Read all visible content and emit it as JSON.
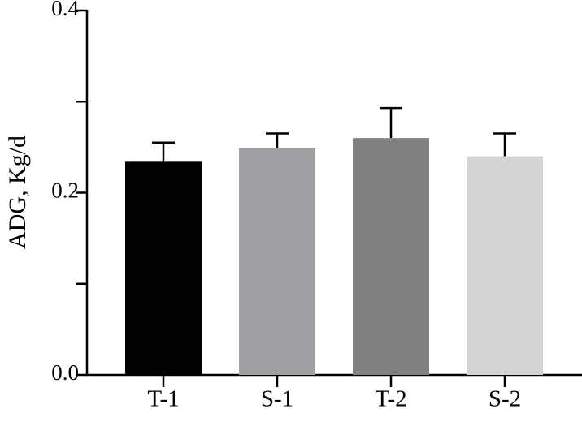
{
  "chart_data": {
    "type": "bar",
    "y_label": "ADG, Kg/d",
    "categories": [
      "T-1",
      "S-1",
      "T-2",
      "S-2"
    ],
    "values": [
      0.234,
      0.249,
      0.26,
      0.24
    ],
    "errors": [
      0.021,
      0.016,
      0.033,
      0.025
    ],
    "colors": [
      "#000000",
      "#a0a0a2",
      "#808080",
      "#d4d4d4"
    ],
    "ylim": [
      0,
      0.4
    ],
    "yticks": [
      {
        "value": 0,
        "label": "0.0"
      },
      0.2,
      0.4
    ],
    "minor_yticks": [
      0.1,
      0.3
    ],
    "grid": false
  }
}
